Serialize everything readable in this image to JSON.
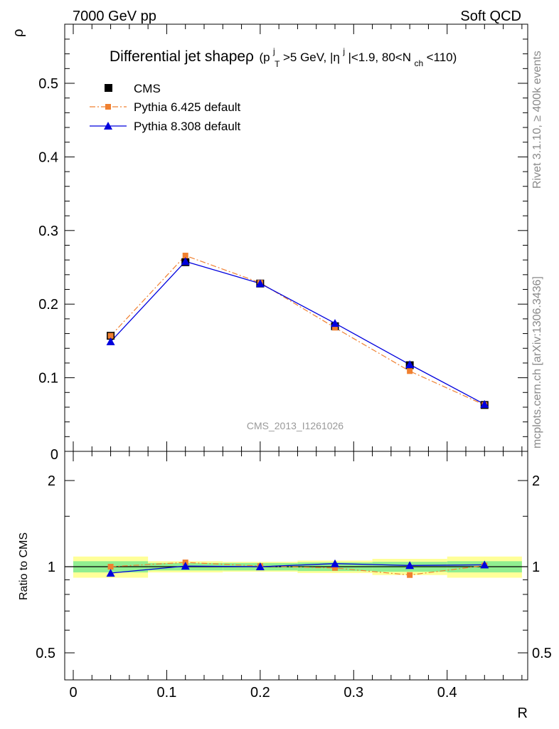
{
  "header": {
    "left": "7000 GeV pp",
    "right": "Soft QCD"
  },
  "side_labels": {
    "rivet": "Rivet 3.1.10, ≥ 400k events",
    "mcplots": "mcplots.cern.ch [arXiv:1306.3436]"
  },
  "title": {
    "main": "Differential jet shapeρ",
    "cut_open": "(p",
    "cut_pt_sup": "j",
    "cut_pt_sub": "T",
    "cut_pt_rest": ">5 GeV, |η",
    "cut_eta_sup": "j",
    "cut_eta_rest": "|<1.9, 80<N",
    "cut_nch_sub": "ch",
    "cut_close": "<110)"
  },
  "watermark": "CMS_2013_I1261026",
  "colors": {
    "cms": "#000000",
    "pythia6": "#f08030",
    "pythia8": "#0000dd",
    "band_inner": "#90ee90",
    "band_outer": "#ffff99"
  },
  "chart_data": {
    "type": "line",
    "xlabel": "R",
    "ylabel": "ρ",
    "ratio_ylabel": "Ratio to CMS",
    "xlim": [
      0,
      0.5
    ],
    "ylim": [
      0,
      0.58
    ],
    "ratio_ylim": [
      0.35,
      2.3
    ],
    "x_ticks": [
      "0",
      "0.1",
      "0.2",
      "0.3",
      "0.4"
    ],
    "y_ticks": [
      "0.1",
      "0.2",
      "0.3",
      "0.4",
      "0.5"
    ],
    "y_zero_label": "0",
    "ratio_ticks": [
      "0.5",
      "1",
      "2"
    ],
    "x": [
      0.04,
      0.12,
      0.2,
      0.28,
      0.36,
      0.44
    ],
    "bins": [
      [
        0,
        0.08
      ],
      [
        0.08,
        0.16
      ],
      [
        0.16,
        0.24
      ],
      [
        0.24,
        0.32
      ],
      [
        0.32,
        0.4
      ],
      [
        0.4,
        0.48
      ]
    ],
    "series": [
      {
        "name": "CMS",
        "marker": "square",
        "values": [
          0.157,
          0.257,
          0.228,
          0.17,
          0.117,
          0.063
        ]
      },
      {
        "name": "Pythia 6.425 default",
        "marker": "circle",
        "style": "dash-dot",
        "values": [
          0.157,
          0.266,
          0.229,
          0.168,
          0.109,
          0.063
        ]
      },
      {
        "name": "Pythia 8.308 default",
        "marker": "triangle",
        "style": "solid",
        "values": [
          0.149,
          0.258,
          0.228,
          0.174,
          0.118,
          0.064
        ]
      }
    ],
    "ratio": {
      "pythia6": [
        1.0,
        1.035,
        1.005,
        0.99,
        0.935,
        1.01
      ],
      "pythia8": [
        0.95,
        1.005,
        1.0,
        1.025,
        1.01,
        1.015
      ],
      "band_inner": [
        0.045,
        0.03,
        0.03,
        0.035,
        0.04,
        0.045
      ],
      "band_outer": [
        0.085,
        0.045,
        0.04,
        0.05,
        0.065,
        0.085
      ]
    },
    "grid": false,
    "legend_position": "top-left"
  }
}
